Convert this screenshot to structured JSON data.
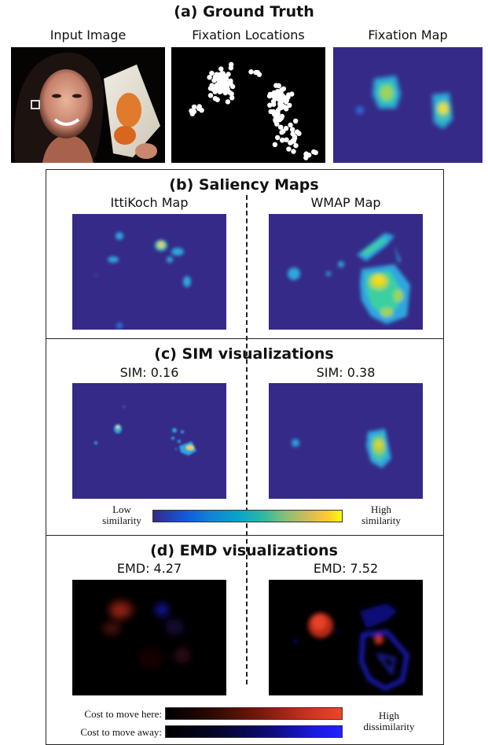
{
  "sections": {
    "a_title": "(a) Ground Truth",
    "b_title": "(b) Saliency Maps",
    "c_title": "(c) SIM visualizations",
    "d_title": "(d) EMD visualizations"
  },
  "ground_truth": {
    "input_label": "Input Image",
    "fixation_locations_label": "Fixation Locations",
    "fixation_map_label": "Fixation Map"
  },
  "saliency": {
    "left_label": "IttiKoch Map",
    "right_label": "WMAP Map"
  },
  "sim": {
    "left_score": "SIM: 0.16",
    "right_score": "SIM: 0.38",
    "low_label_1": "Low",
    "low_label_2": "similarity",
    "high_label_1": "High",
    "high_label_2": "similarity"
  },
  "emd": {
    "left_score": "EMD: 4.27",
    "right_score": "EMD: 7.52",
    "move_here_label": "Cost to move here:",
    "move_away_label": "Cost to move away:",
    "high_label_1": "High",
    "high_label_2": "dissimilarity"
  },
  "colors": {
    "parula_bg": "#352a87",
    "parula_yellow": "#f9fb0e",
    "emd_red": "#e8412a",
    "emd_blue": "#1a1aff"
  }
}
